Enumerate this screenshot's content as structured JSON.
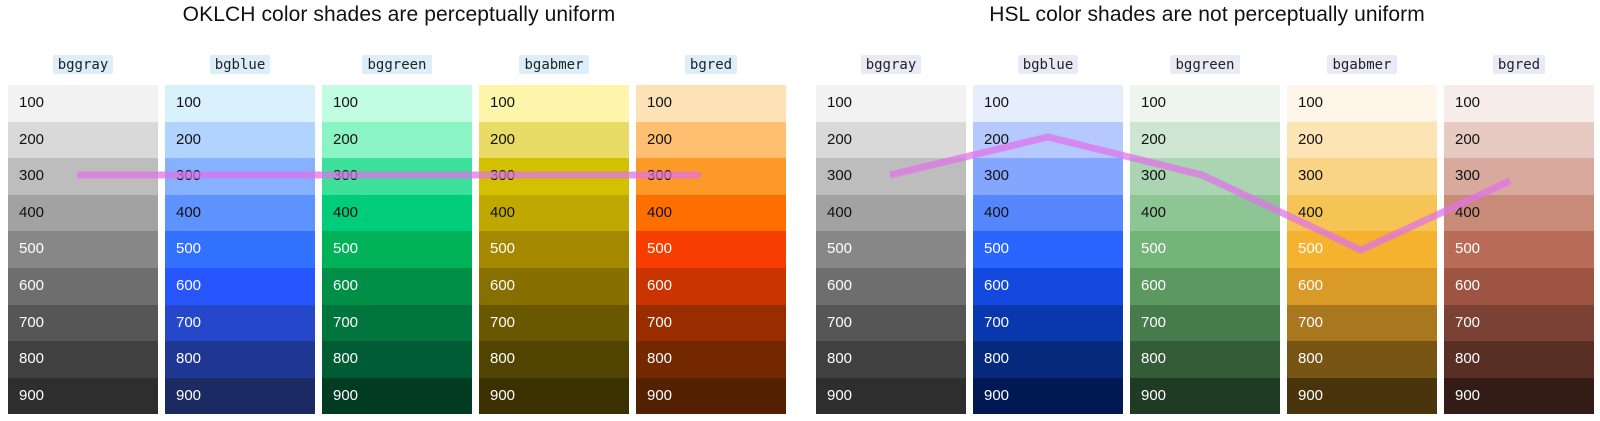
{
  "shades": [
    "100",
    "200",
    "300",
    "400",
    "500",
    "600",
    "700",
    "800",
    "900"
  ],
  "panels": [
    {
      "title": "OKLCH color shades are perceptually uniform",
      "label_bg": "#dbeefa",
      "palettes": [
        {
          "name": "bggray",
          "colors": [
            "#f2f2f2",
            "#d9d9d9",
            "#bdbdbd",
            "#a2a2a2",
            "#878787",
            "#6e6e6e",
            "#565656",
            "#404040",
            "#2e2e2e"
          ]
        },
        {
          "name": "bgblue",
          "colors": [
            "#d8f1fd",
            "#b0d4fe",
            "#86b1fe",
            "#5e92fe",
            "#3270fe",
            "#2755fe",
            "#2448c9",
            "#1e3793",
            "#1b2a63"
          ]
        },
        {
          "name": "bggreen",
          "colors": [
            "#c1fde3",
            "#8af4c5",
            "#3de09b",
            "#00cc79",
            "#00b359",
            "#008f46",
            "#00763e",
            "#005c34",
            "#003b22"
          ]
        },
        {
          "name": "bgabmer",
          "colors": [
            "#fdf5a9",
            "#e8db66",
            "#d3c100",
            "#bfa800",
            "#a48800",
            "#887000",
            "#6a5800",
            "#514300",
            "#3b3100"
          ]
        },
        {
          "name": "bgred",
          "colors": [
            "#fde2b8",
            "#fec070",
            "#fd9a27",
            "#fe6e00",
            "#f83d00",
            "#c93400",
            "#9a2d00",
            "#742800",
            "#532000"
          ]
        }
      ]
    },
    {
      "title": "HSL color shades are not perceptually uniform",
      "label_bg": "#e8eaf6",
      "palettes": [
        {
          "name": "bggray",
          "colors": [
            "#f2f2f2",
            "#d9d9d9",
            "#bdbdbd",
            "#a2a2a2",
            "#878787",
            "#6e6e6e",
            "#565656",
            "#404040",
            "#2e2e2e"
          ]
        },
        {
          "name": "bgblue",
          "colors": [
            "#e6edfd",
            "#b5c9fe",
            "#85a6fe",
            "#5586fe",
            "#2965fe",
            "#1349de",
            "#0937ae",
            "#05297d",
            "#011952"
          ]
        },
        {
          "name": "bggreen",
          "colors": [
            "#edf5ee",
            "#cde5d1",
            "#abd4b2",
            "#8ec594",
            "#73b478",
            "#5b9961",
            "#467c4b",
            "#335c37",
            "#203b24"
          ]
        },
        {
          "name": "bgabmer",
          "colors": [
            "#fdf5e7",
            "#fde4b4",
            "#f9d484",
            "#f6c454",
            "#f5b22f",
            "#d99a27",
            "#a9771e",
            "#795515",
            "#4a340d"
          ]
        },
        {
          "name": "bgred",
          "colors": [
            "#f6ecea",
            "#e7cbc3",
            "#d8aa9d",
            "#c88b7a",
            "#b86c57",
            "#9d5442",
            "#7a4134",
            "#582f25",
            "#341c16"
          ]
        }
      ]
    }
  ]
}
